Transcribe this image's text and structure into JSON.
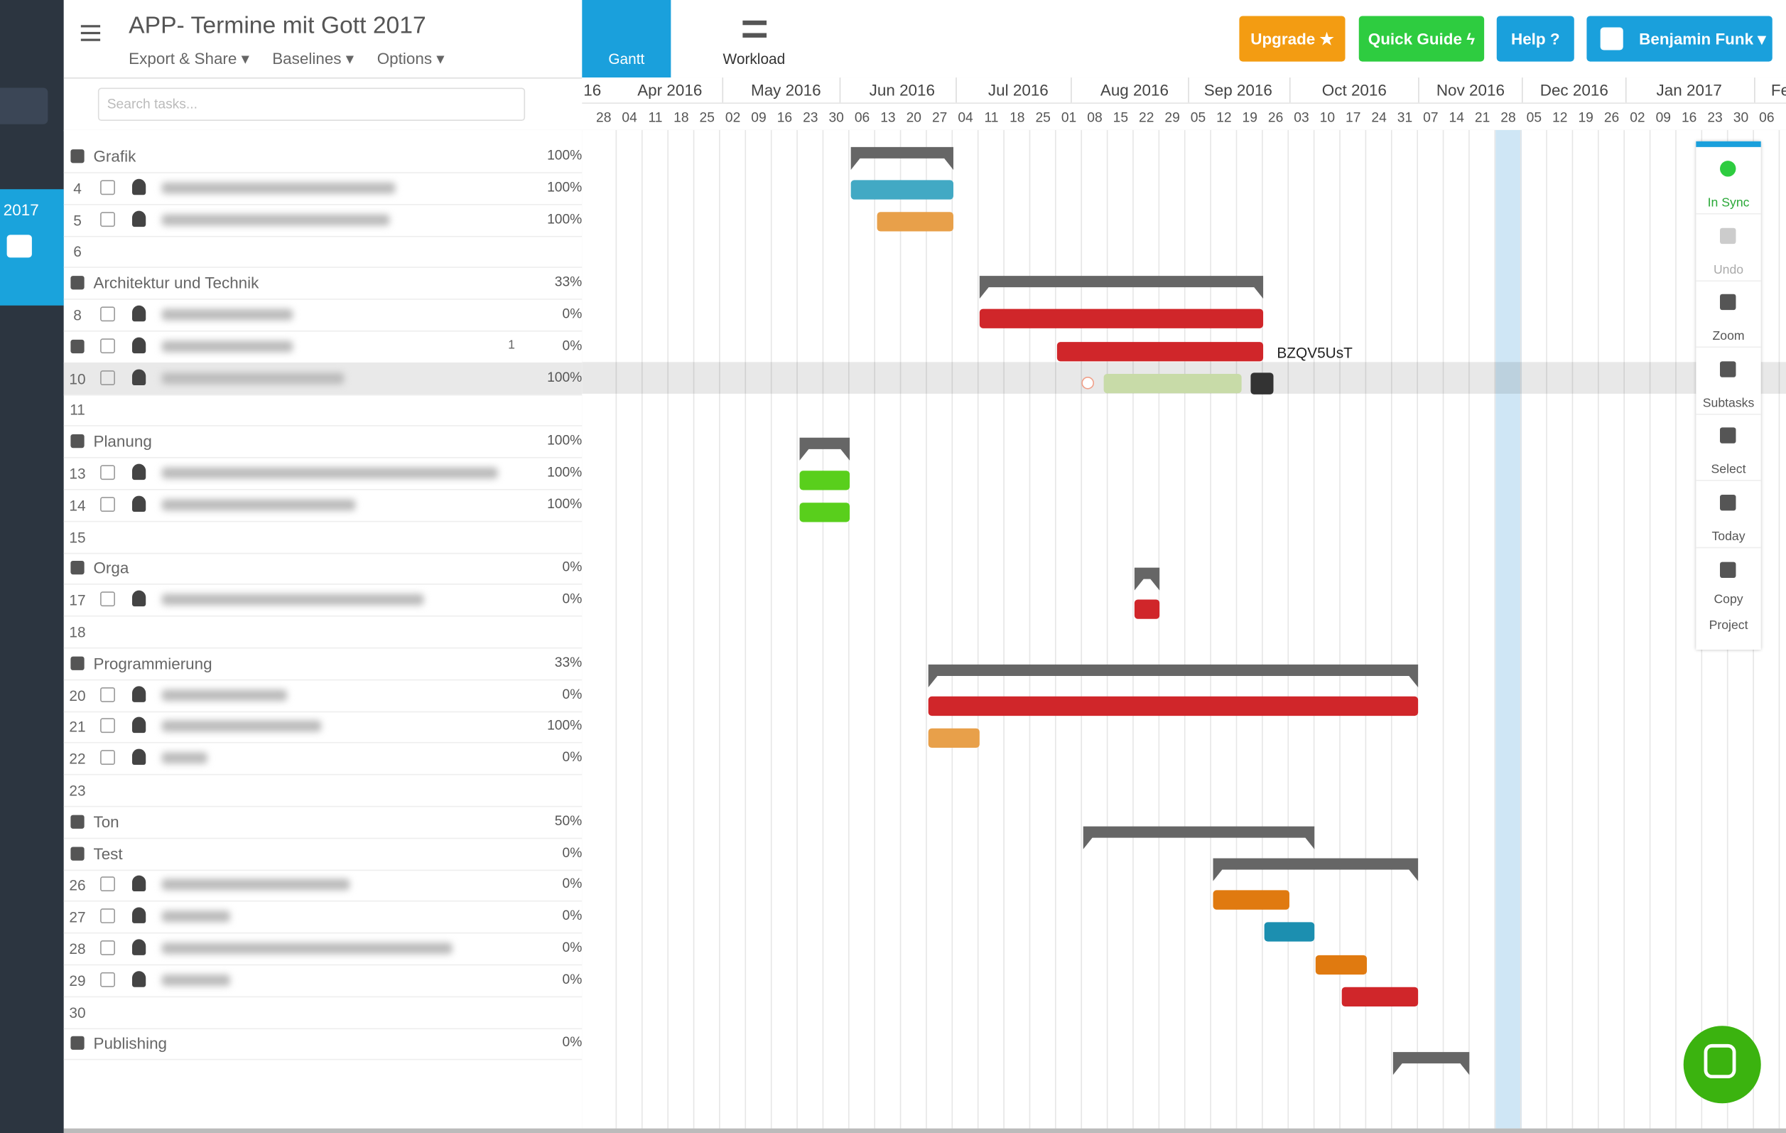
{
  "header": {
    "title": "APP- Termine mit Gott 2017",
    "menus": [
      "Export & Share ▾",
      "Baselines ▾",
      "Options ▾"
    ]
  },
  "tabs": [
    "Gantt",
    "Workload"
  ],
  "buttons": [
    "Upgrade ★",
    "Quick Guide ϟ",
    "Help ?",
    "Benjamin Funk ▾"
  ],
  "sidebar": {
    "year": "2017"
  },
  "search": {
    "placeholder": "Search tasks..."
  },
  "timeline": {
    "months": [
      "16",
      "Apr 2016",
      "May 2016",
      "Jun 2016",
      "Jul 2016",
      "Aug 2016",
      "Sep 2016",
      "Oct 2016",
      "Nov 2016",
      "Dec 2016",
      "Jan 2017",
      "Fe"
    ],
    "weeks": [
      "28",
      "04",
      "11",
      "18",
      "25",
      "02",
      "09",
      "16",
      "23",
      "30",
      "06",
      "13",
      "20",
      "27",
      "04",
      "11",
      "18",
      "25",
      "01",
      "08",
      "15",
      "22",
      "29",
      "05",
      "12",
      "19",
      "26",
      "03",
      "10",
      "17",
      "24",
      "31",
      "07",
      "14",
      "21",
      "28",
      "05",
      "12",
      "19",
      "26",
      "02",
      "09",
      "16",
      "23",
      "30",
      "06"
    ]
  },
  "rows": [
    {
      "label": "Grafik",
      "percent": "100%"
    },
    {
      "number": "4",
      "percent": "100%"
    },
    {
      "number": "5",
      "percent": "100%"
    },
    {
      "number": "6"
    },
    {
      "label": "Architektur und Technik",
      "percent": "33%"
    },
    {
      "number": "8",
      "percent": "0%"
    },
    {
      "subtasks": "1",
      "percent": "0%"
    },
    {
      "number": "10",
      "percent": "100%"
    },
    {
      "number": "11"
    },
    {
      "label": "Planung",
      "percent": "100%"
    },
    {
      "number": "13",
      "percent": "100%"
    },
    {
      "number": "14",
      "percent": "100%"
    },
    {
      "number": "15"
    },
    {
      "label": "Orga",
      "percent": "0%"
    },
    {
      "number": "17",
      "percent": "0%"
    },
    {
      "number": "18"
    },
    {
      "label": "Programmierung",
      "percent": "33%"
    },
    {
      "number": "20",
      "percent": "0%"
    },
    {
      "number": "21",
      "percent": "100%"
    },
    {
      "number": "22",
      "percent": "0%"
    },
    {
      "number": "23"
    },
    {
      "label": "Ton",
      "percent": "50%"
    },
    {
      "label": "Test",
      "percent": "0%"
    },
    {
      "number": "26",
      "percent": "0%"
    },
    {
      "number": "27",
      "percent": "0%"
    },
    {
      "number": "28",
      "percent": "0%"
    },
    {
      "number": "29",
      "percent": "0%"
    },
    {
      "number": "30"
    },
    {
      "label": "Publishing",
      "percent": "0%"
    }
  ],
  "bar_label": "BZQV5UsT",
  "tools": [
    "In Sync",
    "Undo",
    "Zoom",
    "Subtasks",
    "Select",
    "Today",
    "Copy Project"
  ]
}
